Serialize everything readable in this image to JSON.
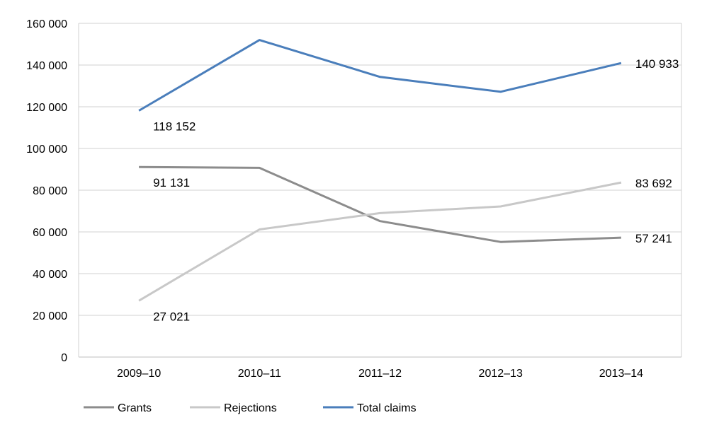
{
  "chart_data": {
    "type": "line",
    "categories": [
      "2009–10",
      "2010–11",
      "2011–12",
      "2012–13",
      "2013–14"
    ],
    "ylim": [
      0,
      160000
    ],
    "yticks": [
      0,
      20000,
      40000,
      60000,
      80000,
      100000,
      120000,
      140000,
      160000
    ],
    "ytick_labels": [
      "0",
      "20 000",
      "40 000",
      "60 000",
      "80 000",
      "100 000",
      "120 000",
      "140 000",
      "160 000"
    ],
    "grid": true,
    "legend_position": "bottom-left",
    "series": [
      {
        "name": "Grants",
        "color": "#8c8c8c",
        "values": [
          91131,
          90700,
          65200,
          55200,
          57241
        ],
        "labels": [
          {
            "index": 0,
            "text": "91 131"
          },
          {
            "index": 4,
            "text": "57 241"
          }
        ]
      },
      {
        "name": "Rejections",
        "color": "#c8c8c8",
        "values": [
          27021,
          61200,
          69000,
          72200,
          83692
        ],
        "labels": [
          {
            "index": 0,
            "text": "27 021"
          },
          {
            "index": 4,
            "text": "83 692"
          }
        ]
      },
      {
        "name": "Total claims",
        "color": "#4a7ebb",
        "values": [
          118152,
          152000,
          134300,
          127200,
          140933
        ],
        "labels": [
          {
            "index": 0,
            "text": "118 152"
          },
          {
            "index": 4,
            "text": "140 933"
          }
        ]
      }
    ],
    "title": "",
    "xlabel": "",
    "ylabel": ""
  }
}
